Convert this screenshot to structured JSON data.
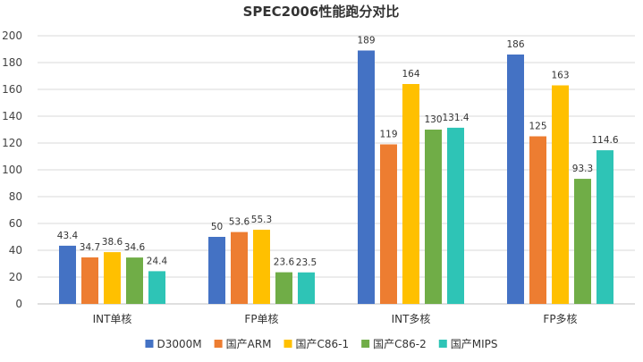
{
  "chart_data": {
    "type": "bar",
    "title": "SPEC2006性能跑分对比",
    "categories": [
      "INT单核",
      "FP单核",
      "INT多核",
      "FP多核"
    ],
    "series": [
      {
        "name": "D3000M",
        "color": "#4472C4",
        "values": [
          43.4,
          50,
          189,
          186
        ],
        "labels": [
          "43.4",
          "50",
          "189",
          "186"
        ]
      },
      {
        "name": "国产ARM",
        "color": "#ED7D31",
        "values": [
          34.7,
          53.6,
          119,
          125
        ],
        "labels": [
          "34.7",
          "53.6",
          "119",
          "125"
        ]
      },
      {
        "name": "国产C86-1",
        "color": "#FFC000",
        "values": [
          38.6,
          55.3,
          164,
          163
        ],
        "labels": [
          "38.6",
          "55.3",
          "164",
          "163"
        ]
      },
      {
        "name": "国产C86-2",
        "color": "#70AD47",
        "values": [
          34.6,
          23.6,
          130,
          93.3
        ],
        "labels": [
          "34.6",
          "23.6",
          "130",
          "93.3"
        ]
      },
      {
        "name": "国产MIPS",
        "color": "#2EC4B6",
        "values": [
          24.4,
          23.5,
          131.4,
          114.6
        ],
        "labels": [
          "24.4",
          "23.5",
          "131.4",
          "114.6"
        ]
      }
    ],
    "ylim": [
      0,
      200
    ],
    "yticks": [
      "0",
      "20",
      "40",
      "60",
      "80",
      "100",
      "120",
      "140",
      "160",
      "180",
      "200"
    ],
    "grid": true,
    "legend_position": "bottom"
  }
}
